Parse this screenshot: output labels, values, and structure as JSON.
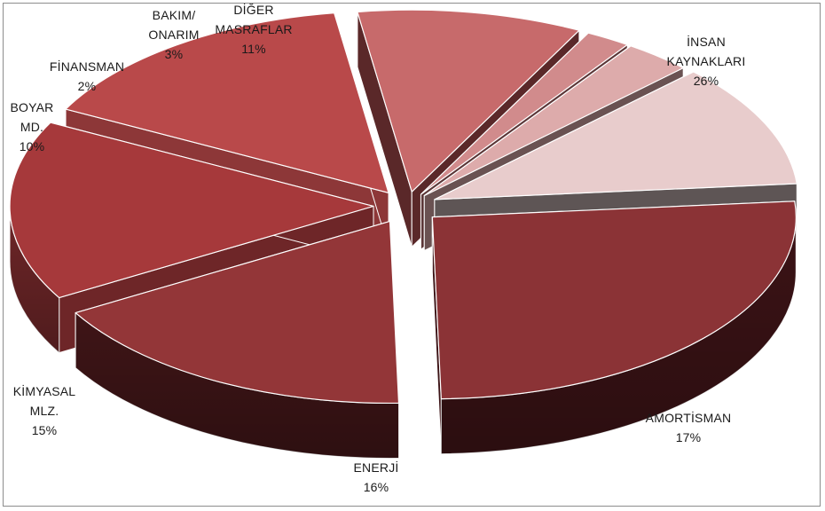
{
  "chart_data": {
    "type": "pie",
    "title": "",
    "style": "3d-exploded",
    "categories": [
      "İNSAN KAYNAKLARI",
      "AMORTİSMAN",
      "ENERJİ",
      "KİMYASAL MLZ.",
      "BOYAR MD.",
      "FİNANSMAN",
      "BAKIM/ ONARIM",
      "DİĞER MASRAFLAR"
    ],
    "values": [
      26,
      17,
      16,
      15,
      10,
      2,
      3,
      11
    ],
    "unit": "%",
    "slices": [
      {
        "label_lines": [
          "İNSAN",
          "KAYNAKLARI"
        ],
        "value": 26,
        "value_text": "26%",
        "top_color": "#8b3336",
        "side_color": "#3c1316"
      },
      {
        "label_lines": [
          "AMORTİSMAN"
        ],
        "value": 17,
        "value_text": "17%",
        "top_color": "#933638",
        "side_color": "#3f1517"
      },
      {
        "label_lines": [
          "ENERJİ"
        ],
        "value": 16,
        "value_text": "16%",
        "top_color": "#a6393b",
        "side_color": "#6e2628"
      },
      {
        "label_lines": [
          "KİMYASAL",
          "MLZ."
        ],
        "value": 15,
        "value_text": "15%",
        "top_color": "#b9494a",
        "side_color": "#8d3738"
      },
      {
        "label_lines": [
          "BOYAR",
          "MD."
        ],
        "value": 10,
        "value_text": "10%",
        "top_color": "#c76a6b",
        "side_color": "#5a2829"
      },
      {
        "label_lines": [
          "FİNANSMAN"
        ],
        "value": 2,
        "value_text": "2%",
        "top_color": "#d18b8c",
        "side_color": "#5b3637"
      },
      {
        "label_lines": [
          "BAKIM/",
          "ONARIM"
        ],
        "value": 3,
        "value_text": "3%",
        "top_color": "#ddabab",
        "side_color": "#6a5252"
      },
      {
        "label_lines": [
          "DİĞER",
          "MASRAFLAR"
        ],
        "value": 11,
        "value_text": "11%",
        "top_color": "#e8cccc",
        "side_color": "#5e5555"
      }
    ],
    "legend": "none",
    "data_labels": "category and percent, outside slices"
  }
}
